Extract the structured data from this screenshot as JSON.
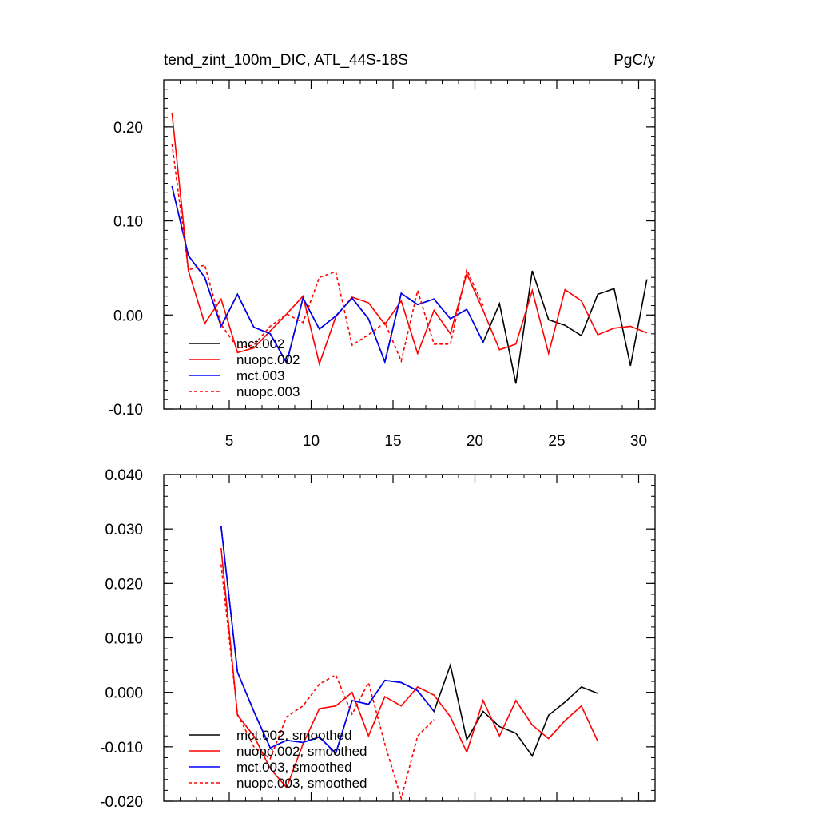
{
  "chart_data": [
    {
      "type": "line",
      "title": "tend_zint_100m_DIC, ATL_44S-18S",
      "units": "PgC/y",
      "xlabel": "",
      "ylabel": "",
      "xlim": [
        1,
        31
      ],
      "ylim": [
        -0.1,
        0.25
      ],
      "xticks": [
        5,
        10,
        15,
        20,
        25,
        30
      ],
      "xtick_labels": [
        "5",
        "10",
        "15",
        "20",
        "25",
        "30"
      ],
      "yticks": [
        -0.1,
        0.0,
        0.1,
        0.2
      ],
      "ytick_labels": [
        "-0.10",
        "0.00",
        "0.10",
        "0.20"
      ],
      "legend_position": "bottom-left",
      "series": [
        {
          "name": "mct.002",
          "color": "#000000",
          "dash": "solid",
          "x": [
            1.5,
            2.5,
            3.5,
            4.5,
            5.5,
            6.5,
            7.5,
            8.5,
            9.5,
            10.5,
            11.5,
            12.5,
            13.5,
            14.5,
            15.5,
            16.5,
            17.5,
            18.5,
            19.5,
            20.5,
            21.5,
            22.5,
            23.5,
            24.5,
            25.5,
            26.5,
            27.5,
            28.5,
            29.5,
            30.5
          ],
          "values": [
            0.137,
            0.063,
            0.04,
            -0.012,
            0.022,
            -0.013,
            -0.02,
            -0.051,
            0.018,
            -0.015,
            -0.001,
            0.018,
            -0.004,
            -0.05,
            0.023,
            0.011,
            0.017,
            -0.004,
            0.006,
            -0.029,
            0.012,
            -0.073,
            0.047,
            -0.005,
            -0.011,
            -0.022,
            0.022,
            0.028,
            -0.054,
            0.038
          ]
        },
        {
          "name": "nuopc.002",
          "color": "#ff0000",
          "dash": "solid",
          "x": [
            1.5,
            2.5,
            3.5,
            4.5,
            5.5,
            6.5,
            7.5,
            8.5,
            9.5,
            10.5,
            11.5,
            12.5,
            13.5,
            14.5,
            15.5,
            16.5,
            17.5,
            18.5,
            19.5,
            20.5,
            21.5,
            22.5,
            23.5,
            24.5,
            25.5,
            26.5,
            27.5,
            28.5,
            29.5,
            30.5
          ],
          "values": [
            0.215,
            0.047,
            -0.009,
            0.017,
            -0.04,
            -0.035,
            -0.017,
            0.001,
            0.02,
            -0.052,
            -0.002,
            0.019,
            0.013,
            -0.01,
            0.015,
            -0.041,
            0.005,
            -0.02,
            0.044,
            0.005,
            -0.037,
            -0.031,
            0.026,
            -0.041,
            0.027,
            0.015,
            -0.021,
            -0.014,
            -0.012,
            -0.019
          ]
        },
        {
          "name": "mct.003",
          "color": "#0000ff",
          "dash": "solid",
          "x": [
            1.5,
            2.5,
            3.5,
            4.5,
            5.5,
            6.5,
            7.5,
            8.5,
            9.5,
            10.5,
            11.5,
            12.5,
            13.5,
            14.5,
            15.5,
            16.5,
            17.5,
            18.5,
            19.5,
            20.5
          ],
          "values": [
            0.137,
            0.063,
            0.04,
            -0.012,
            0.022,
            -0.013,
            -0.02,
            -0.051,
            0.018,
            -0.015,
            -0.001,
            0.018,
            -0.004,
            -0.05,
            0.023,
            0.011,
            0.017,
            -0.004,
            0.006,
            -0.029
          ]
        },
        {
          "name": "nuopc.003",
          "color": "#ff0000",
          "dash": "dashed",
          "x": [
            1.5,
            2.5,
            3.5,
            4.5,
            5.5,
            6.5,
            7.5,
            8.5,
            9.5,
            10.5,
            11.5,
            12.5,
            13.5,
            14.5,
            15.5,
            16.5,
            17.5,
            18.5,
            19.5,
            20.5
          ],
          "values": [
            0.182,
            0.048,
            0.053,
            -0.01,
            -0.035,
            -0.032,
            -0.012,
            0.001,
            -0.008,
            0.04,
            0.046,
            -0.032,
            -0.021,
            -0.008,
            -0.049,
            0.026,
            -0.031,
            -0.031,
            0.048,
            0.01
          ]
        }
      ]
    },
    {
      "type": "line",
      "title": "",
      "xlabel": "",
      "ylabel": "",
      "xlim": [
        1,
        31
      ],
      "ylim": [
        -0.02,
        0.04
      ],
      "xticks": [
        5,
        10,
        15,
        20,
        25,
        30
      ],
      "xtick_labels": [],
      "yticks": [
        -0.02,
        -0.01,
        0.0,
        0.01,
        0.02,
        0.03,
        0.04
      ],
      "ytick_labels": [
        "-0.020",
        "-0.010",
        "0.000",
        "0.010",
        "0.020",
        "0.030",
        "0.040"
      ],
      "legend_position": "bottom-left",
      "series": [
        {
          "name": "mct.002, smoothed",
          "color": "#000000",
          "dash": "solid",
          "x": [
            4.5,
            5.5,
            6.5,
            7.5,
            8.5,
            9.5,
            10.5,
            11.5,
            12.5,
            13.5,
            14.5,
            15.5,
            16.5,
            17.5,
            18.5,
            19.5,
            20.5,
            21.5,
            22.5,
            23.5,
            24.5,
            25.5,
            26.5,
            27.5
          ],
          "values": [
            0.0305,
            0.0037,
            -0.0035,
            -0.0102,
            -0.0088,
            -0.0092,
            -0.0082,
            -0.0112,
            -0.0015,
            -0.0022,
            0.0022,
            0.0018,
            0.0003,
            -0.0035,
            0.005,
            -0.0087,
            -0.0035,
            -0.0063,
            -0.0075,
            -0.0117,
            -0.0042,
            -0.0018,
            0.001,
            -0.0002
          ]
        },
        {
          "name": "nuopc.002, smoothed",
          "color": "#ff0000",
          "dash": "solid",
          "x": [
            4.5,
            5.5,
            6.5,
            7.5,
            8.5,
            9.5,
            10.5,
            11.5,
            12.5,
            13.5,
            14.5,
            15.5,
            16.5,
            17.5,
            18.5,
            19.5,
            20.5,
            21.5,
            22.5,
            23.5,
            24.5,
            25.5,
            26.5,
            27.5
          ],
          "values": [
            0.0265,
            -0.0042,
            -0.008,
            -0.014,
            -0.0175,
            -0.0095,
            -0.003,
            -0.0025,
            0.0,
            -0.008,
            -0.0008,
            -0.0025,
            0.001,
            -0.0005,
            -0.0045,
            -0.011,
            -0.0015,
            -0.008,
            -0.0015,
            -0.006,
            -0.0085,
            -0.0052,
            -0.0025,
            -0.009
          ]
        },
        {
          "name": "mct.003, smoothed",
          "color": "#0000ff",
          "dash": "solid",
          "x": [
            4.5,
            5.5,
            6.5,
            7.5,
            8.5,
            9.5,
            10.5,
            11.5,
            12.5,
            13.5,
            14.5,
            15.5,
            16.5,
            17.5
          ],
          "values": [
            0.0305,
            0.0037,
            -0.0035,
            -0.0102,
            -0.0088,
            -0.0092,
            -0.0082,
            -0.0112,
            -0.0015,
            -0.0022,
            0.0022,
            0.0018,
            0.0003,
            -0.0035
          ]
        },
        {
          "name": "nuopc.003, smoothed",
          "color": "#ff0000",
          "dash": "dashed",
          "x": [
            4.5,
            5.5,
            6.5,
            7.5,
            8.5,
            9.5,
            10.5,
            11.5,
            12.5,
            13.5,
            14.5,
            15.5,
            16.5,
            17.5
          ],
          "values": [
            0.0235,
            -0.004,
            -0.01,
            -0.0122,
            -0.0045,
            -0.0025,
            0.0015,
            0.0032,
            -0.004,
            0.0018,
            -0.0095,
            -0.0195,
            -0.008,
            -0.005
          ]
        }
      ]
    }
  ]
}
